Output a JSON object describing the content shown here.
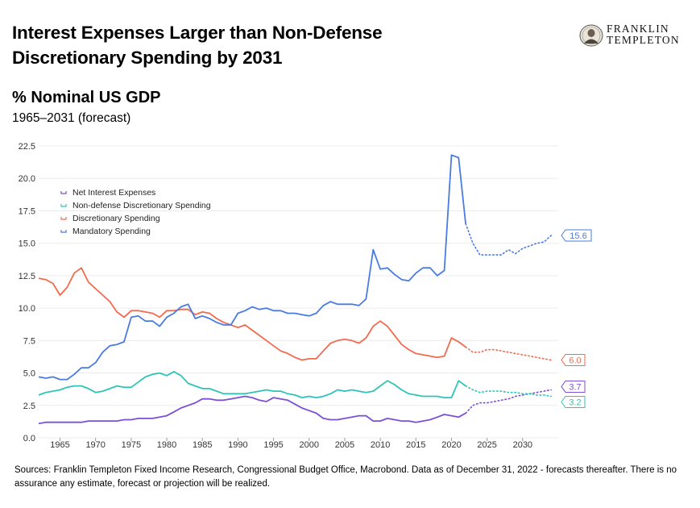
{
  "header": {
    "title_line1": "Interest Expenses Larger than Non-Defense",
    "title_line2": "Discretionary Spending by 2031",
    "subtitle": "% Nominal US GDP",
    "date_range": "1965–2031 (forecast)"
  },
  "logo": {
    "line1": "FRANKLIN",
    "line2": "TEMPLETON"
  },
  "footer": {
    "source": "Sources: Franklin Templeton Fixed Income Research, Congressional Budget Office, Macrobond. Data as of December 31, 2022 - forecasts thereafter. There is no assurance any estimate, forecast or projection will be realized."
  },
  "chart_data": {
    "type": "line",
    "title": "% Nominal US GDP",
    "xlim": [
      1962,
      2035
    ],
    "ylim": [
      0,
      22.5
    ],
    "y_ticks": [
      "0.0",
      "2.5",
      "5.0",
      "7.5",
      "10.0",
      "12.5",
      "15.0",
      "17.5",
      "20.0",
      "22.5"
    ],
    "x_ticks": [
      "1965",
      "1970",
      "1975",
      "1980",
      "1985",
      "1990",
      "1995",
      "2000",
      "2005",
      "2010",
      "2015",
      "2020",
      "2025",
      "2030"
    ],
    "grid": true,
    "legend_position": "top-left",
    "series": [
      {
        "name": "Net Interest Expenses",
        "color": "#7b4fd6",
        "end_label": "3.7",
        "actual": [
          [
            1962,
            1.1
          ],
          [
            1963,
            1.2
          ],
          [
            1964,
            1.2
          ],
          [
            1965,
            1.2
          ],
          [
            1966,
            1.2
          ],
          [
            1967,
            1.2
          ],
          [
            1968,
            1.2
          ],
          [
            1969,
            1.3
          ],
          [
            1970,
            1.3
          ],
          [
            1971,
            1.3
          ],
          [
            1972,
            1.3
          ],
          [
            1973,
            1.3
          ],
          [
            1974,
            1.4
          ],
          [
            1975,
            1.4
          ],
          [
            1976,
            1.5
          ],
          [
            1977,
            1.5
          ],
          [
            1978,
            1.5
          ],
          [
            1979,
            1.6
          ],
          [
            1980,
            1.7
          ],
          [
            1981,
            2.0
          ],
          [
            1982,
            2.3
          ],
          [
            1983,
            2.5
          ],
          [
            1984,
            2.7
          ],
          [
            1985,
            3.0
          ],
          [
            1986,
            3.0
          ],
          [
            1987,
            2.9
          ],
          [
            1988,
            2.9
          ],
          [
            1989,
            3.0
          ],
          [
            1990,
            3.1
          ],
          [
            1991,
            3.2
          ],
          [
            1992,
            3.1
          ],
          [
            1993,
            2.9
          ],
          [
            1994,
            2.8
          ],
          [
            1995,
            3.1
          ],
          [
            1996,
            3.0
          ],
          [
            1997,
            2.9
          ],
          [
            1998,
            2.6
          ],
          [
            1999,
            2.3
          ],
          [
            2000,
            2.1
          ],
          [
            2001,
            1.9
          ],
          [
            2002,
            1.5
          ],
          [
            2003,
            1.4
          ],
          [
            2004,
            1.4
          ],
          [
            2005,
            1.5
          ],
          [
            2006,
            1.6
          ],
          [
            2007,
            1.7
          ],
          [
            2008,
            1.7
          ],
          [
            2009,
            1.3
          ],
          [
            2010,
            1.3
          ],
          [
            2011,
            1.5
          ],
          [
            2012,
            1.4
          ],
          [
            2013,
            1.3
          ],
          [
            2014,
            1.3
          ],
          [
            2015,
            1.2
          ],
          [
            2016,
            1.3
          ],
          [
            2017,
            1.4
          ],
          [
            2018,
            1.6
          ],
          [
            2019,
            1.8
          ],
          [
            2020,
            1.7
          ],
          [
            2021,
            1.6
          ],
          [
            2022,
            1.9
          ]
        ],
        "forecast": [
          [
            2022,
            1.9
          ],
          [
            2023,
            2.5
          ],
          [
            2024,
            2.7
          ],
          [
            2025,
            2.7
          ],
          [
            2026,
            2.8
          ],
          [
            2027,
            2.9
          ],
          [
            2028,
            3.0
          ],
          [
            2029,
            3.2
          ],
          [
            2030,
            3.3
          ],
          [
            2031,
            3.4
          ],
          [
            2032,
            3.5
          ],
          [
            2033,
            3.6
          ],
          [
            2034,
            3.7
          ]
        ]
      },
      {
        "name": "Non-defense Discretionary Spending",
        "color": "#2ec4b6",
        "end_label": "3.2",
        "actual": [
          [
            1962,
            3.3
          ],
          [
            1963,
            3.5
          ],
          [
            1964,
            3.6
          ],
          [
            1965,
            3.7
          ],
          [
            1966,
            3.9
          ],
          [
            1967,
            4.0
          ],
          [
            1968,
            4.0
          ],
          [
            1969,
            3.8
          ],
          [
            1970,
            3.5
          ],
          [
            1971,
            3.6
          ],
          [
            1972,
            3.8
          ],
          [
            1973,
            4.0
          ],
          [
            1974,
            3.9
          ],
          [
            1975,
            3.9
          ],
          [
            1976,
            4.3
          ],
          [
            1977,
            4.7
          ],
          [
            1978,
            4.9
          ],
          [
            1979,
            5.0
          ],
          [
            1980,
            4.8
          ],
          [
            1981,
            5.1
          ],
          [
            1982,
            4.8
          ],
          [
            1983,
            4.2
          ],
          [
            1984,
            4.0
          ],
          [
            1985,
            3.8
          ],
          [
            1986,
            3.8
          ],
          [
            1987,
            3.6
          ],
          [
            1988,
            3.4
          ],
          [
            1989,
            3.4
          ],
          [
            1990,
            3.4
          ],
          [
            1991,
            3.4
          ],
          [
            1992,
            3.5
          ],
          [
            1993,
            3.6
          ],
          [
            1994,
            3.7
          ],
          [
            1995,
            3.6
          ],
          [
            1996,
            3.6
          ],
          [
            1997,
            3.4
          ],
          [
            1998,
            3.3
          ],
          [
            1999,
            3.1
          ],
          [
            2000,
            3.2
          ],
          [
            2001,
            3.1
          ],
          [
            2002,
            3.2
          ],
          [
            2003,
            3.4
          ],
          [
            2004,
            3.7
          ],
          [
            2005,
            3.6
          ],
          [
            2006,
            3.7
          ],
          [
            2007,
            3.6
          ],
          [
            2008,
            3.5
          ],
          [
            2009,
            3.6
          ],
          [
            2010,
            4.0
          ],
          [
            2011,
            4.4
          ],
          [
            2012,
            4.1
          ],
          [
            2013,
            3.7
          ],
          [
            2014,
            3.4
          ],
          [
            2015,
            3.3
          ],
          [
            2016,
            3.2
          ],
          [
            2017,
            3.2
          ],
          [
            2018,
            3.2
          ],
          [
            2019,
            3.1
          ],
          [
            2020,
            3.1
          ],
          [
            2021,
            4.4
          ],
          [
            2022,
            4.0
          ]
        ],
        "forecast": [
          [
            2022,
            4.0
          ],
          [
            2023,
            3.7
          ],
          [
            2024,
            3.5
          ],
          [
            2025,
            3.6
          ],
          [
            2026,
            3.6
          ],
          [
            2027,
            3.6
          ],
          [
            2028,
            3.5
          ],
          [
            2029,
            3.5
          ],
          [
            2030,
            3.4
          ],
          [
            2031,
            3.4
          ],
          [
            2032,
            3.3
          ],
          [
            2033,
            3.3
          ],
          [
            2034,
            3.2
          ]
        ]
      },
      {
        "name": "Discretionary Spending",
        "color": "#f26b4f",
        "end_label": "6.0",
        "actual": [
          [
            1962,
            12.3
          ],
          [
            1963,
            12.2
          ],
          [
            1964,
            11.9
          ],
          [
            1965,
            11.0
          ],
          [
            1966,
            11.6
          ],
          [
            1967,
            12.7
          ],
          [
            1968,
            13.1
          ],
          [
            1969,
            12.0
          ],
          [
            1970,
            11.5
          ],
          [
            1971,
            11.0
          ],
          [
            1972,
            10.5
          ],
          [
            1973,
            9.7
          ],
          [
            1974,
            9.3
          ],
          [
            1975,
            9.8
          ],
          [
            1976,
            9.8
          ],
          [
            1977,
            9.7
          ],
          [
            1978,
            9.6
          ],
          [
            1979,
            9.3
          ],
          [
            1980,
            9.8
          ],
          [
            1981,
            9.8
          ],
          [
            1982,
            9.9
          ],
          [
            1983,
            9.9
          ],
          [
            1984,
            9.5
          ],
          [
            1985,
            9.7
          ],
          [
            1986,
            9.6
          ],
          [
            1987,
            9.2
          ],
          [
            1988,
            8.9
          ],
          [
            1989,
            8.7
          ],
          [
            1990,
            8.5
          ],
          [
            1991,
            8.7
          ],
          [
            1992,
            8.3
          ],
          [
            1993,
            7.9
          ],
          [
            1994,
            7.5
          ],
          [
            1995,
            7.1
          ],
          [
            1996,
            6.7
          ],
          [
            1997,
            6.5
          ],
          [
            1998,
            6.2
          ],
          [
            1999,
            6.0
          ],
          [
            2000,
            6.1
          ],
          [
            2001,
            6.1
          ],
          [
            2002,
            6.7
          ],
          [
            2003,
            7.3
          ],
          [
            2004,
            7.5
          ],
          [
            2005,
            7.6
          ],
          [
            2006,
            7.5
          ],
          [
            2007,
            7.3
          ],
          [
            2008,
            7.7
          ],
          [
            2009,
            8.6
          ],
          [
            2010,
            9.0
          ],
          [
            2011,
            8.6
          ],
          [
            2012,
            7.9
          ],
          [
            2013,
            7.2
          ],
          [
            2014,
            6.8
          ],
          [
            2015,
            6.5
          ],
          [
            2016,
            6.4
          ],
          [
            2017,
            6.3
          ],
          [
            2018,
            6.2
          ],
          [
            2019,
            6.3
          ],
          [
            2020,
            7.7
          ],
          [
            2021,
            7.4
          ],
          [
            2022,
            7.0
          ]
        ],
        "forecast": [
          [
            2022,
            7.0
          ],
          [
            2023,
            6.6
          ],
          [
            2024,
            6.6
          ],
          [
            2025,
            6.8
          ],
          [
            2026,
            6.8
          ],
          [
            2027,
            6.7
          ],
          [
            2028,
            6.6
          ],
          [
            2029,
            6.5
          ],
          [
            2030,
            6.4
          ],
          [
            2031,
            6.3
          ],
          [
            2032,
            6.2
          ],
          [
            2033,
            6.1
          ],
          [
            2034,
            6.0
          ]
        ]
      },
      {
        "name": "Mandatory Spending",
        "color": "#4a7be0",
        "end_label": "15.6",
        "actual": [
          [
            1962,
            4.7
          ],
          [
            1963,
            4.6
          ],
          [
            1964,
            4.7
          ],
          [
            1965,
            4.5
          ],
          [
            1966,
            4.5
          ],
          [
            1967,
            4.9
          ],
          [
            1968,
            5.4
          ],
          [
            1969,
            5.4
          ],
          [
            1970,
            5.8
          ],
          [
            1971,
            6.6
          ],
          [
            1972,
            7.1
          ],
          [
            1973,
            7.2
          ],
          [
            1974,
            7.4
          ],
          [
            1975,
            9.3
          ],
          [
            1976,
            9.4
          ],
          [
            1977,
            9.0
          ],
          [
            1978,
            9.0
          ],
          [
            1979,
            8.6
          ],
          [
            1980,
            9.3
          ],
          [
            1981,
            9.6
          ],
          [
            1982,
            10.1
          ],
          [
            1983,
            10.3
          ],
          [
            1984,
            9.2
          ],
          [
            1985,
            9.4
          ],
          [
            1986,
            9.2
          ],
          [
            1987,
            8.9
          ],
          [
            1988,
            8.7
          ],
          [
            1989,
            8.7
          ],
          [
            1990,
            9.6
          ],
          [
            1991,
            9.8
          ],
          [
            1992,
            10.1
          ],
          [
            1993,
            9.9
          ],
          [
            1994,
            10.0
          ],
          [
            1995,
            9.8
          ],
          [
            1996,
            9.8
          ],
          [
            1997,
            9.6
          ],
          [
            1998,
            9.6
          ],
          [
            1999,
            9.5
          ],
          [
            2000,
            9.4
          ],
          [
            2001,
            9.6
          ],
          [
            2002,
            10.2
          ],
          [
            2003,
            10.5
          ],
          [
            2004,
            10.3
          ],
          [
            2005,
            10.3
          ],
          [
            2006,
            10.3
          ],
          [
            2007,
            10.2
          ],
          [
            2008,
            10.7
          ],
          [
            2009,
            14.5
          ],
          [
            2010,
            13.0
          ],
          [
            2011,
            13.1
          ],
          [
            2012,
            12.6
          ],
          [
            2013,
            12.2
          ],
          [
            2014,
            12.1
          ],
          [
            2015,
            12.7
          ],
          [
            2016,
            13.1
          ],
          [
            2017,
            13.1
          ],
          [
            2018,
            12.5
          ],
          [
            2019,
            12.9
          ],
          [
            2020,
            21.8
          ],
          [
            2021,
            21.6
          ],
          [
            2022,
            16.5
          ]
        ],
        "forecast": [
          [
            2022,
            16.5
          ],
          [
            2023,
            15.0
          ],
          [
            2024,
            14.1
          ],
          [
            2025,
            14.1
          ],
          [
            2026,
            14.1
          ],
          [
            2027,
            14.1
          ],
          [
            2028,
            14.5
          ],
          [
            2029,
            14.2
          ],
          [
            2030,
            14.6
          ],
          [
            2031,
            14.8
          ],
          [
            2032,
            15.0
          ],
          [
            2033,
            15.1
          ],
          [
            2034,
            15.6
          ]
        ]
      }
    ]
  }
}
